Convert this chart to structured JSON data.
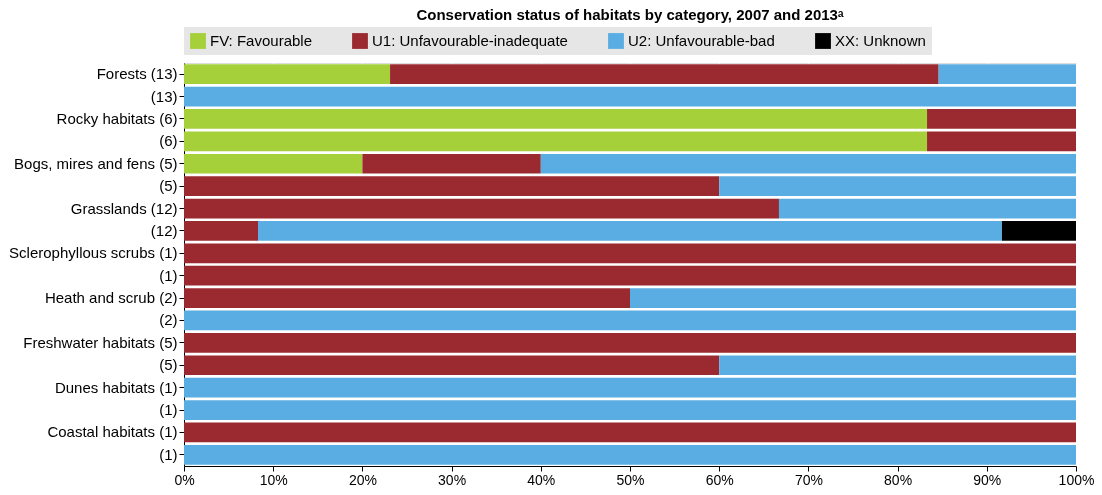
{
  "chart_data": {
    "type": "bar",
    "orientation": "horizontal",
    "stacked": true,
    "title": "Conservation status of habitats by category, 2007 and 2013ᵃ",
    "categories": [
      "Forests (13)",
      "(13)",
      "Rocky habitats (6)",
      "(6)",
      "Bogs, mires and fens (5)",
      "(5)",
      "Grasslands (12)",
      "(12)",
      "Sclerophyllous scrubs (1)",
      "(1)",
      "Heath and scrub (2)",
      "(2)",
      "Freshwater habitats (5)",
      "(5)",
      "Dunes habitats (1)",
      "(1)",
      "Coastal habitats (1)",
      "(1)"
    ],
    "series": [
      {
        "name": "FV: Favourable",
        "color": "#a5d03a",
        "values": [
          23.1,
          null,
          83.3,
          83.3,
          20,
          null,
          null,
          null,
          null,
          null,
          null,
          null,
          null,
          null,
          null,
          null,
          null,
          null
        ]
      },
      {
        "name": "U1: Unfavourable-inadequate",
        "color": "#9b2a30",
        "values": [
          61.5,
          null,
          16.7,
          16.7,
          20,
          60,
          66.7,
          8.3,
          100,
          100,
          50,
          null,
          100,
          60,
          null,
          null,
          100,
          null
        ]
      },
      {
        "name": "U2: Unfavourable-bad",
        "color": "#5aade2",
        "values": [
          15.4,
          100,
          null,
          null,
          60,
          40,
          33.3,
          83.4,
          null,
          null,
          50,
          100,
          null,
          40,
          100,
          100,
          null,
          100
        ]
      },
      {
        "name": "XX: Unknown",
        "color": "#000000",
        "values": [
          null,
          null,
          null,
          null,
          null,
          null,
          null,
          8.3,
          null,
          null,
          null,
          null,
          null,
          null,
          null,
          null,
          null,
          null
        ]
      }
    ],
    "xlim": [
      0,
      100
    ],
    "xticks": [
      {
        "value": 0,
        "label": "0%"
      },
      {
        "value": 10,
        "label": "10%"
      },
      {
        "value": 20,
        "label": "20%"
      },
      {
        "value": 30,
        "label": "30%"
      },
      {
        "value": 40,
        "label": "40%"
      },
      {
        "value": 50,
        "label": "50%"
      },
      {
        "value": 60,
        "label": "60%"
      },
      {
        "value": 70,
        "label": "70%"
      },
      {
        "value": 80,
        "label": "80%"
      },
      {
        "value": 90,
        "label": "90%"
      },
      {
        "value": 100,
        "label": "100%"
      }
    ],
    "grid": "x",
    "legend": "top"
  }
}
